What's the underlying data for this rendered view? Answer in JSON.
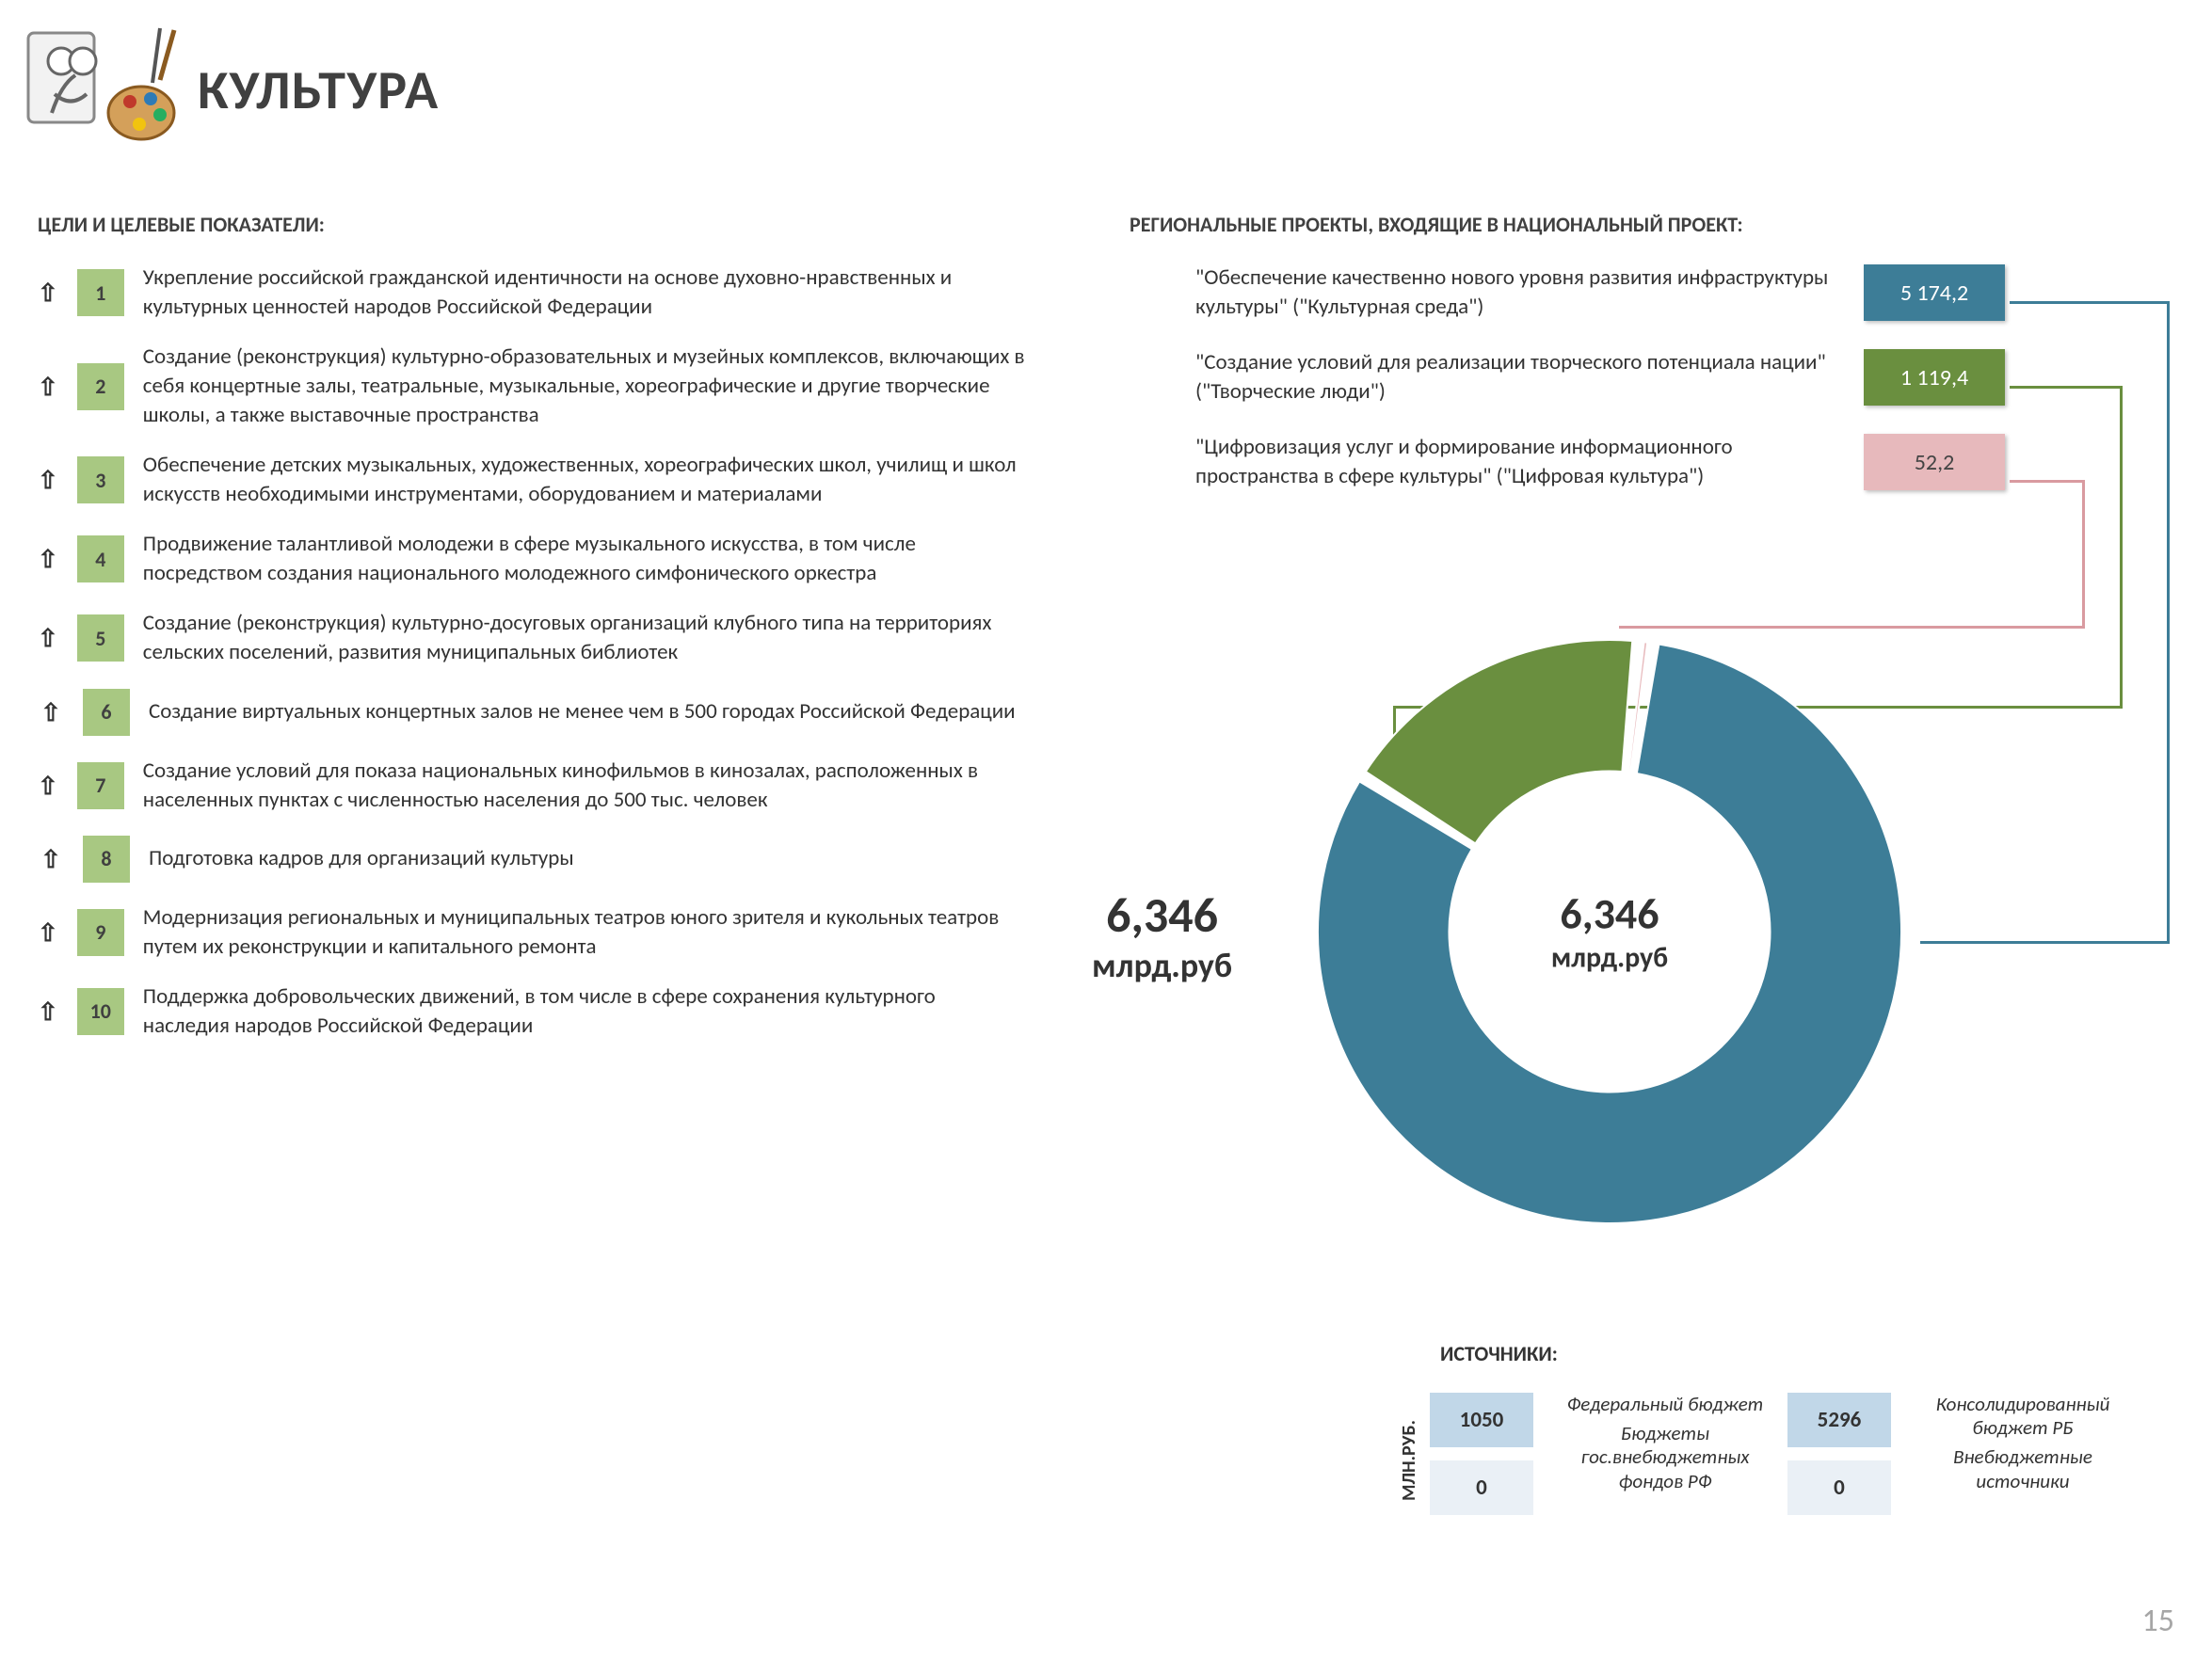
{
  "page_title": "КУЛЬТУРА",
  "goals_heading": "ЦЕЛИ И ЦЕЛЕВЫЕ ПОКАЗАТЕЛИ:",
  "projects_heading": "РЕГИОНАЛЬНЫЕ ПРОЕКТЫ, ВХОДЯЩИЕ В НАЦИОНАЛЬНЫЙ ПРОЕКТ:",
  "page_number": "15",
  "goals": [
    {
      "n": "1",
      "text": "Укрепление российской гражданской идентичности на основе духовно-нравственных и культурных ценностей народов Российской Федерации"
    },
    {
      "n": "2",
      "text": "Создание (реконструкция) культурно-образовательных и музейных комплексов, включающих в себя концертные залы, театральные, музыкальные, хореографические и другие творческие школы, а также выставочные пространства"
    },
    {
      "n": "3",
      "text": "Обеспечение детских музыкальных, художественных, хореографических школ, училищ и школ искусств необходимыми инструментами, оборудованием и материалами"
    },
    {
      "n": "4",
      "text": "Продвижение талантливой молодежи в сфере музыкального искусства, в том числе посредством создания национального молодежного симфонического оркестра"
    },
    {
      "n": "5",
      "text": "Создание (реконструкция) культурно-досуговых организаций клубного типа на территориях сельских поселений, развития муниципальных библиотек"
    },
    {
      "n": "6",
      "text": "Создание виртуальных концертных залов не менее чем в 500 городах Российской Федерации"
    },
    {
      "n": "7",
      "text": "Создание условий для показа национальных кинофильмов в кинозалах, расположенных в населенных пунктах с численностью населения до 500 тыс. человек"
    },
    {
      "n": "8",
      "text": "Подготовка кадров для организаций культуры"
    },
    {
      "n": "9",
      "text": "Модернизация региональных и муниципальных театров юного зрителя и кукольных театров путем их реконструкции и капитального ремонта"
    },
    {
      "n": "10",
      "text": "Поддержка добровольческих движений, в том числе в сфере сохранения культурного наследия народов Российской Федерации"
    }
  ],
  "goal_box_color": "#a8c882",
  "projects": [
    {
      "label": "\"Обеспечение качественно нового уровня развития инфраструктуры культуры\" (\"Культурная среда\")",
      "value": "5 174,2",
      "color": "#3d7d97",
      "value_num": 5174.2
    },
    {
      "label": "\"Создание условий для реализации творческого потенциала нации\"  (\"Творческие люди\")",
      "value": "1 119,4",
      "color": "#6a8f3f",
      "value_num": 1119.4
    },
    {
      "label": "\"Цифровизация услуг и формирование информационного пространства в сфере культуры\" (\"Цифровая культура\")",
      "value": "52,2",
      "color": "#e7b9bc",
      "value_num": 52.2
    }
  ],
  "donut": {
    "type": "donut",
    "center_value": "6,346",
    "center_unit": "млрд.руб",
    "outer_value": "6,346",
    "outer_unit": "млрд.руб",
    "inner_radius_ratio": 0.55,
    "segments": [
      {
        "color": "#3d7d97",
        "value": 5174.2
      },
      {
        "color": "#6a8f3f",
        "value": 1119.4
      },
      {
        "color": "#e7b9bc",
        "value": 52.2
      }
    ],
    "background": "#ffffff",
    "separator_color": "#ffffff"
  },
  "sources_heading": "ИСТОЧНИКИ:",
  "sources_ylabel": "МЛН.РУБ.",
  "sources": {
    "boxes": [
      {
        "value": "1050",
        "label": "Федеральный бюджет",
        "color": "#c1d7e8"
      },
      {
        "value": "0",
        "label": "Бюджеты гос.внебюджетных фондов РФ",
        "color": "#eaf0f6"
      },
      {
        "value": "5296",
        "label": "Консолидированный бюджет РБ",
        "color": "#c1d7e8"
      },
      {
        "value": "0",
        "label": "Внебюджетные источники",
        "color": "#eaf0f6"
      }
    ]
  }
}
